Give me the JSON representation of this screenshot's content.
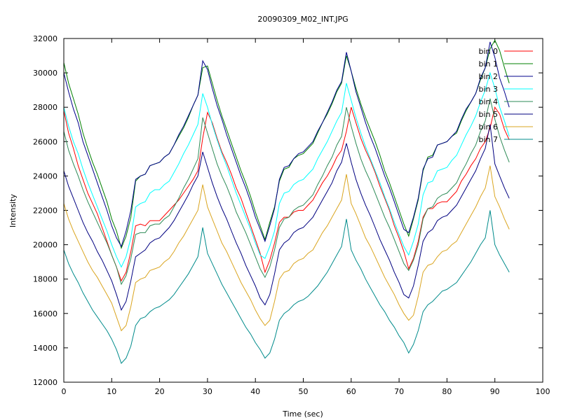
{
  "chart_data": {
    "type": "line",
    "title": "20090309_M02_INT.JPG",
    "xlabel": "Time (sec)",
    "ylabel": "Intensity",
    "xlim": [
      0,
      100
    ],
    "ylim": [
      12000,
      32000
    ],
    "xticks": [
      0,
      10,
      20,
      30,
      40,
      50,
      60,
      70,
      80,
      90,
      100
    ],
    "yticks": [
      12000,
      14000,
      16000,
      18000,
      20000,
      22000,
      24000,
      26000,
      28000,
      30000,
      32000
    ],
    "grid": false,
    "legend_position": "top-right",
    "x": [
      0,
      1,
      2,
      3,
      4,
      5,
      6,
      7,
      8,
      9,
      10,
      11,
      12,
      13,
      14,
      15,
      16,
      17,
      18,
      19,
      20,
      21,
      22,
      23,
      24,
      25,
      26,
      27,
      28,
      29,
      30,
      31,
      32,
      33,
      34,
      35,
      36,
      37,
      38,
      39,
      40,
      41,
      42,
      43,
      44,
      45,
      46,
      47,
      48,
      49,
      50,
      51,
      52,
      53,
      54,
      55,
      56,
      57,
      58,
      59,
      60,
      61,
      62,
      63,
      64,
      65,
      66,
      67,
      68,
      69,
      70,
      71,
      72,
      73,
      74,
      75,
      76,
      77,
      78,
      79,
      80,
      81,
      82,
      83,
      84,
      85,
      86,
      87,
      88,
      89,
      90,
      91,
      92,
      93
    ],
    "series": [
      {
        "name": "bin 0",
        "color": "#ff0000",
        "values": [
          27800,
          26500,
          25600,
          24600,
          23800,
          23000,
          22400,
          21800,
          21000,
          20200,
          19400,
          18700,
          17900,
          18400,
          19600,
          21100,
          21200,
          21100,
          21400,
          21400,
          21400,
          21700,
          22000,
          22300,
          22600,
          23000,
          23400,
          23800,
          24300,
          26200,
          27700,
          27100,
          26200,
          25400,
          24800,
          24100,
          23300,
          22700,
          21900,
          21100,
          20300,
          19500,
          18400,
          19100,
          20100,
          21300,
          21600,
          21600,
          21900,
          22000,
          22000,
          22300,
          22600,
          23100,
          23600,
          24000,
          24500,
          25100,
          25500,
          26600,
          28000,
          27100,
          26200,
          25500,
          24900,
          24200,
          23400,
          22700,
          22000,
          21100,
          20400,
          19600,
          18600,
          19200,
          20200,
          21600,
          22100,
          22100,
          22400,
          22500,
          22500,
          22800,
          23100,
          23700,
          24100,
          24600,
          25000,
          25600,
          26000,
          26800,
          28000,
          27600,
          26700,
          26100
        ]
      },
      {
        "name": "bin 1",
        "color": "#008000",
        "values": [
          30600,
          29400,
          28500,
          27600,
          26500,
          25600,
          24800,
          24100,
          23300,
          22500,
          21500,
          20800,
          19800,
          20500,
          21600,
          23700,
          24000,
          24100,
          24600,
          24700,
          24800,
          25100,
          25300,
          25800,
          26300,
          26800,
          27400,
          28100,
          28700,
          30300,
          30400,
          29400,
          28400,
          27500,
          26700,
          25900,
          25100,
          24300,
          23600,
          22800,
          21900,
          21100,
          20300,
          21300,
          22200,
          23700,
          24400,
          24500,
          25000,
          25200,
          25300,
          25600,
          25900,
          26500,
          27100,
          27600,
          28200,
          28900,
          29400,
          31000,
          30100,
          29100,
          28200,
          27400,
          26700,
          26000,
          25200,
          24300,
          23600,
          22800,
          22000,
          21200,
          20500,
          21500,
          22600,
          24300,
          25100,
          25200,
          25800,
          25900,
          26000,
          26300,
          26500,
          27200,
          27800,
          28300,
          28800,
          29600,
          30300,
          31400,
          31900,
          31300,
          30300,
          29400
        ]
      },
      {
        "name": "bin 2",
        "color": "#00008b",
        "values": [
          30000,
          28900,
          27900,
          27100,
          26000,
          25200,
          24400,
          23600,
          22800,
          22000,
          21100,
          20400,
          19900,
          20800,
          22000,
          23800,
          24000,
          24100,
          24600,
          24700,
          24800,
          25100,
          25300,
          25800,
          26400,
          26900,
          27500,
          28100,
          28700,
          30700,
          30200,
          29100,
          28100,
          27300,
          26400,
          25600,
          24800,
          24000,
          23300,
          22500,
          21600,
          20900,
          20200,
          21100,
          22100,
          23800,
          24500,
          24600,
          25000,
          25300,
          25400,
          25700,
          26000,
          26600,
          27100,
          27700,
          28300,
          29000,
          29500,
          31200,
          30100,
          28900,
          28000,
          27100,
          26300,
          25600,
          24800,
          24000,
          23300,
          22500,
          21700,
          20900,
          20700,
          21600,
          22700,
          24400,
          25000,
          25100,
          25800,
          25900,
          26000,
          26300,
          26600,
          27300,
          27900,
          28300,
          28800,
          29700,
          30300,
          31800,
          30900,
          29700,
          28900,
          28000
        ]
      },
      {
        "name": "bin 3",
        "color": "#00ffff",
        "values": [
          28000,
          26900,
          26000,
          25300,
          24400,
          23600,
          22900,
          22200,
          21500,
          20800,
          20000,
          19300,
          18700,
          19300,
          20400,
          22200,
          22400,
          22500,
          23000,
          23200,
          23200,
          23500,
          23700,
          24200,
          24700,
          25300,
          25800,
          26400,
          27000,
          28800,
          28000,
          27000,
          26100,
          25300,
          24600,
          23800,
          23000,
          22300,
          21600,
          20900,
          20100,
          19400,
          19200,
          19900,
          20800,
          22400,
          23000,
          23100,
          23500,
          23700,
          23800,
          24100,
          24400,
          25000,
          25500,
          26000,
          26600,
          27200,
          27700,
          29400,
          28400,
          27400,
          26500,
          25700,
          25000,
          24300,
          23600,
          22800,
          22100,
          21300,
          20600,
          19900,
          19400,
          20200,
          21200,
          22900,
          23600,
          23700,
          24300,
          24400,
          24500,
          24900,
          25200,
          25800,
          26400,
          26900,
          27500,
          28300,
          29000,
          30000,
          29100,
          28000,
          27200,
          26300
        ]
      },
      {
        "name": "bin 4",
        "color": "#2e8b57",
        "values": [
          26600,
          25500,
          24700,
          24000,
          23200,
          22500,
          21900,
          21300,
          20700,
          20100,
          19400,
          18700,
          17700,
          18200,
          19200,
          20600,
          20700,
          20700,
          21100,
          21200,
          21200,
          21500,
          21700,
          22200,
          22700,
          23300,
          23800,
          24400,
          25000,
          27400,
          26500,
          25600,
          24700,
          24000,
          23400,
          22700,
          21900,
          21300,
          20700,
          20000,
          19300,
          18600,
          18100,
          18700,
          19700,
          21000,
          21500,
          21600,
          22000,
          22200,
          22300,
          22600,
          22900,
          23500,
          24000,
          24600,
          25100,
          25800,
          26300,
          28000,
          26900,
          25900,
          25000,
          24300,
          23700,
          23000,
          22300,
          21600,
          21000,
          20300,
          19600,
          18900,
          18500,
          19100,
          20000,
          21500,
          22100,
          22200,
          22700,
          22900,
          23000,
          23300,
          23600,
          24200,
          24700,
          25300,
          25800,
          26600,
          27200,
          28500,
          27300,
          26300,
          25500,
          24800
        ]
      },
      {
        "name": "bin 5",
        "color": "#000080",
        "values": [
          24300,
          23400,
          22700,
          22000,
          21300,
          20700,
          20200,
          19600,
          19100,
          18500,
          17900,
          17100,
          16200,
          16700,
          17900,
          19300,
          19500,
          19700,
          20100,
          20300,
          20400,
          20700,
          21000,
          21400,
          21900,
          22400,
          22900,
          23500,
          24000,
          25400,
          24500,
          23600,
          22800,
          22100,
          21500,
          20800,
          20100,
          19500,
          18800,
          18200,
          17600,
          16900,
          16500,
          17100,
          18300,
          19700,
          20100,
          20300,
          20700,
          20900,
          21000,
          21300,
          21600,
          22100,
          22600,
          23100,
          23600,
          24300,
          24800,
          25900,
          24800,
          23800,
          23000,
          22300,
          21700,
          21000,
          20300,
          19700,
          19100,
          18400,
          17800,
          17100,
          16900,
          17600,
          18800,
          20200,
          20700,
          20900,
          21400,
          21600,
          21700,
          22000,
          22300,
          22800,
          23300,
          23800,
          24300,
          25000,
          25600,
          27000,
          24700,
          24000,
          23300,
          22700
        ]
      },
      {
        "name": "bin 6",
        "color": "#daa520",
        "values": [
          22400,
          21500,
          20800,
          20200,
          19600,
          19000,
          18500,
          18100,
          17600,
          17100,
          16600,
          15800,
          15000,
          15300,
          16400,
          17800,
          18000,
          18100,
          18500,
          18600,
          18700,
          19000,
          19200,
          19600,
          20100,
          20500,
          21000,
          21500,
          22000,
          23500,
          22200,
          21500,
          20800,
          20100,
          19600,
          19000,
          18400,
          17800,
          17300,
          16800,
          16200,
          15700,
          15300,
          15600,
          16700,
          18000,
          18400,
          18500,
          18900,
          19100,
          19200,
          19500,
          19700,
          20200,
          20700,
          21100,
          21600,
          22100,
          22600,
          24100,
          22400,
          21800,
          21100,
          20400,
          19900,
          19300,
          18700,
          18100,
          17600,
          17100,
          16500,
          16000,
          15600,
          15900,
          17000,
          18400,
          18800,
          18900,
          19300,
          19600,
          19700,
          20000,
          20200,
          20700,
          21200,
          21700,
          22200,
          22800,
          23300,
          24600,
          22800,
          22200,
          21500,
          20900
        ]
      },
      {
        "name": "bin 7",
        "color": "#008b8b",
        "values": [
          19700,
          18900,
          18300,
          17800,
          17200,
          16700,
          16200,
          15800,
          15400,
          15000,
          14500,
          13900,
          13100,
          13400,
          14100,
          15300,
          15700,
          15800,
          16100,
          16300,
          16400,
          16600,
          16800,
          17100,
          17500,
          17900,
          18300,
          18800,
          19300,
          21000,
          19500,
          18900,
          18300,
          17700,
          17200,
          16700,
          16200,
          15700,
          15200,
          14800,
          14300,
          13900,
          13400,
          13700,
          14500,
          15600,
          16000,
          16200,
          16500,
          16700,
          16800,
          17000,
          17300,
          17600,
          18000,
          18400,
          18900,
          19400,
          19900,
          21500,
          19700,
          19100,
          18600,
          18000,
          17500,
          17000,
          16500,
          16100,
          15600,
          15200,
          14700,
          14300,
          13700,
          14200,
          15000,
          16100,
          16500,
          16700,
          17000,
          17300,
          17400,
          17600,
          17800,
          18200,
          18600,
          19000,
          19500,
          20000,
          20400,
          22000,
          20000,
          19400,
          18900,
          18400
        ]
      }
    ]
  }
}
